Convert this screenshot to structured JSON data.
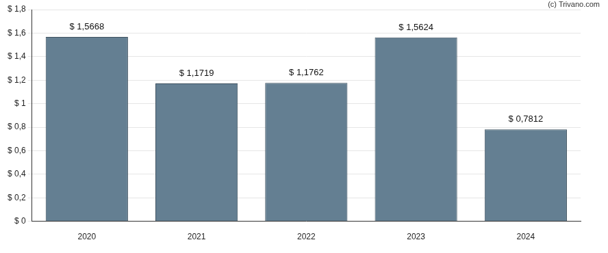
{
  "chart_data": {
    "type": "bar",
    "annotations": [
      "(c) Trivano.com"
    ],
    "categories": [
      "2020",
      "2021",
      "2022",
      "2023",
      "2024"
    ],
    "values": [
      1.5668,
      1.1719,
      1.1762,
      1.5624,
      0.7812
    ],
    "value_labels": [
      "$ 1,5668",
      "$ 1,1719",
      "$ 1,1762",
      "$ 1,5624",
      "$ 0,7812"
    ],
    "data_labels": true,
    "color": "#647f92",
    "ylim": [
      0,
      1.8
    ],
    "yticks": [
      {
        "value": 0,
        "label": "$ 0"
      },
      {
        "value": 0.2,
        "label": "$ 0,2"
      },
      {
        "value": 0.4,
        "label": "$ 0,4"
      },
      {
        "value": 0.6,
        "label": "$ 0,6"
      },
      {
        "value": 0.8,
        "label": "$ 0,8"
      },
      {
        "value": 1,
        "label": "$ 1"
      },
      {
        "value": 1.2,
        "label": "$ 1,2"
      },
      {
        "value": 1.4,
        "label": "$ 1,4"
      },
      {
        "value": 1.6,
        "label": "$ 1,6"
      },
      {
        "value": 1.8,
        "label": "$ 1,8"
      }
    ],
    "grid": true
  }
}
